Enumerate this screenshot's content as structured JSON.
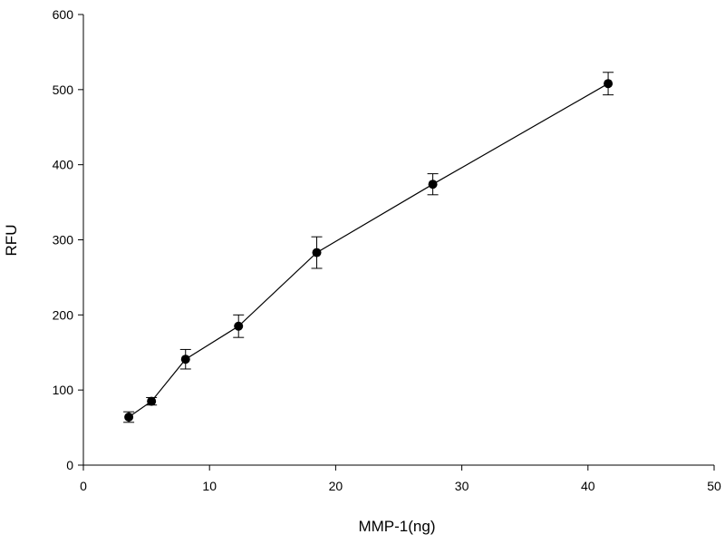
{
  "chart_data": {
    "type": "scatter",
    "title": "",
    "xlabel": "MMP-1(ng)",
    "ylabel": "RFU",
    "xlim": [
      0,
      50
    ],
    "ylim": [
      0,
      600
    ],
    "x_ticks": [
      "0",
      "10",
      "20",
      "30",
      "40",
      "50"
    ],
    "y_ticks": [
      "0",
      "100",
      "200",
      "300",
      "400",
      "500",
      "600"
    ],
    "grid": false,
    "legend": "none",
    "connected_line": true,
    "error_bars": true,
    "marker_color": "#000000",
    "line_color": "#000000",
    "series": [
      {
        "x": [
          3.6,
          5.4,
          8.1,
          12.3,
          18.5,
          27.7,
          41.6
        ],
        "y": [
          64,
          85,
          141,
          185,
          283,
          374,
          508
        ],
        "error": [
          7,
          5,
          13,
          15,
          21,
          14,
          15
        ]
      }
    ]
  }
}
